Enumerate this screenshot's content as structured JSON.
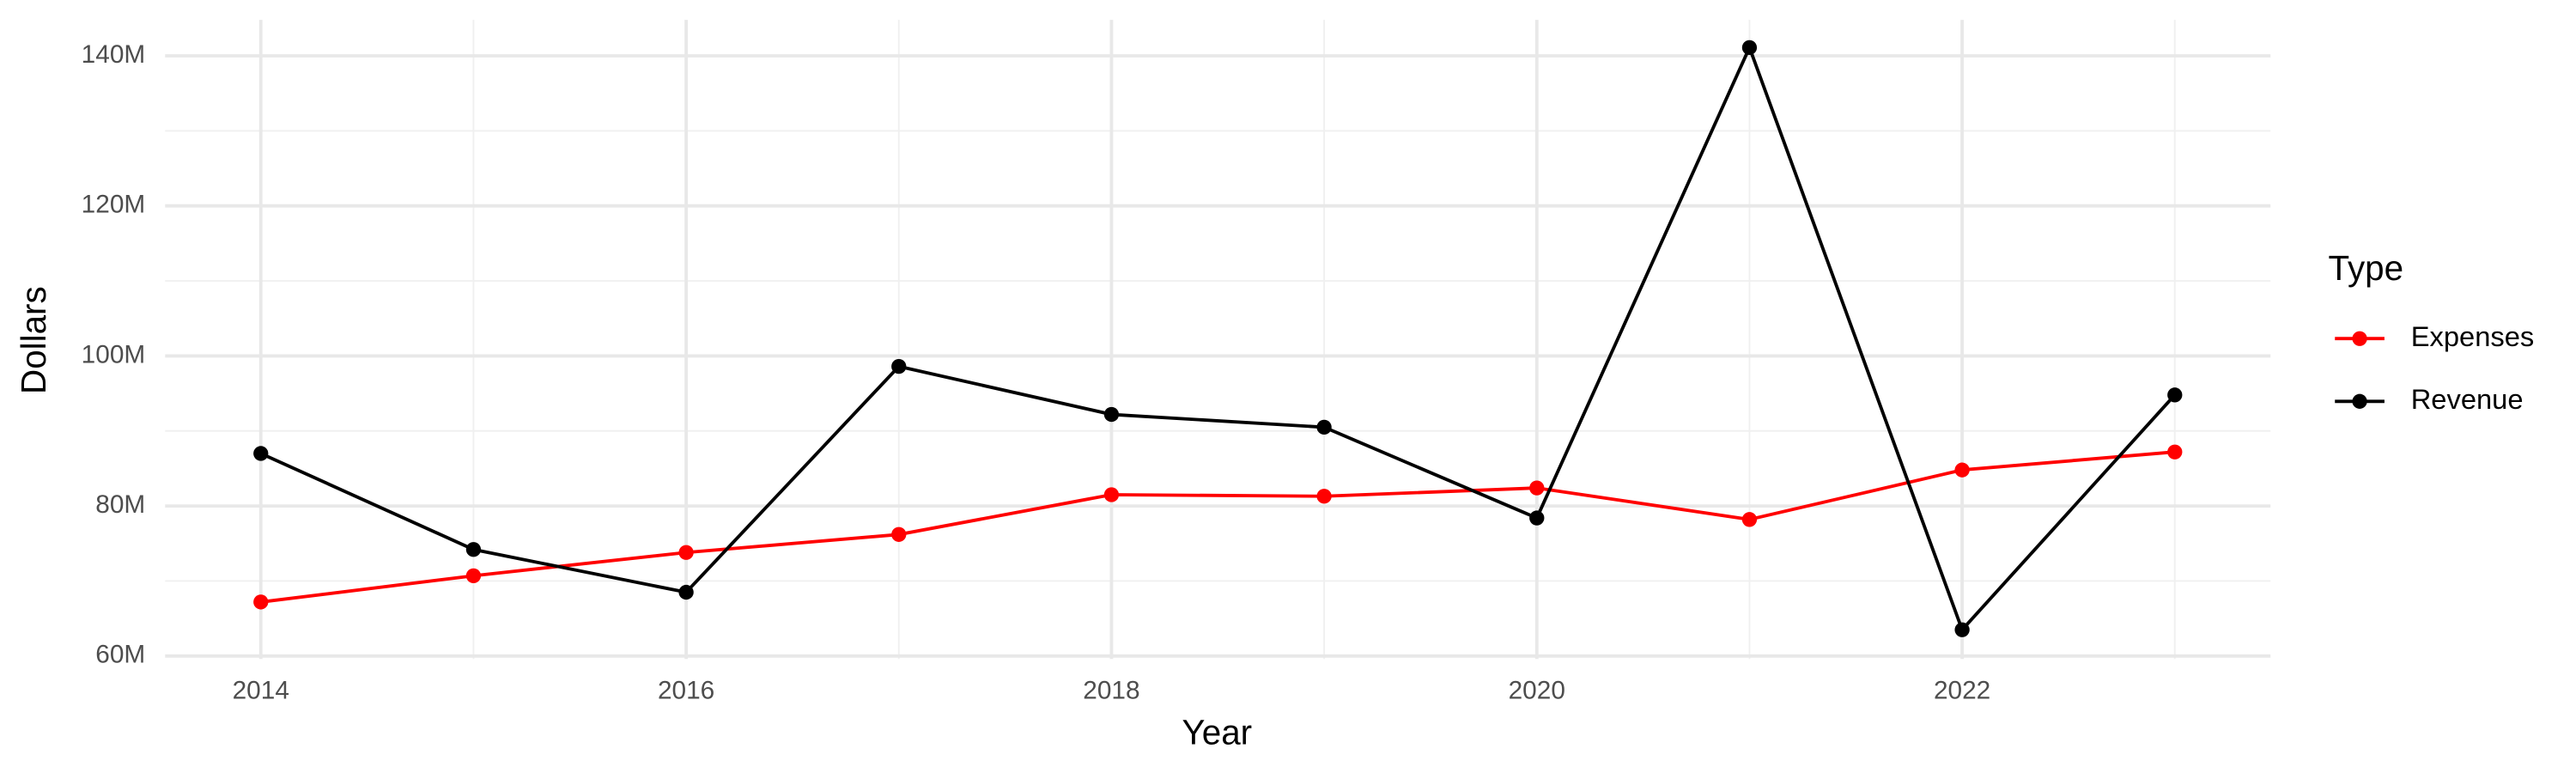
{
  "chart_data": {
    "type": "line",
    "x_label": "Year",
    "y_label": "Dollars",
    "legend_title": "Type",
    "legend_position": "right",
    "x": [
      2014,
      2015,
      2016,
      2017,
      2018,
      2019,
      2020,
      2021,
      2022,
      2023
    ],
    "series": [
      {
        "name": "Expenses",
        "color": "#ff0000",
        "values": [
          67200000,
          70700000,
          73800000,
          76200000,
          81500000,
          81300000,
          82400000,
          78200000,
          84800000,
          87200000
        ]
      },
      {
        "name": "Revenue",
        "color": "#000000",
        "values": [
          87000000,
          74200000,
          68500000,
          98600000,
          92200000,
          90500000,
          78400000,
          141100000,
          63500000,
          94800000
        ]
      }
    ],
    "xlim": [
      2013.55,
      2023.45
    ],
    "xticks": [
      2014,
      2016,
      2018,
      2020,
      2022
    ],
    "x_minor_ticks": [
      2015,
      2017,
      2019,
      2021,
      2023
    ],
    "ylim": [
      59600000,
      144800000
    ],
    "yticks": [
      {
        "value": 60000000,
        "label": "60M"
      },
      {
        "value": 80000000,
        "label": "80M"
      },
      {
        "value": 100000000,
        "label": "100M"
      },
      {
        "value": 120000000,
        "label": "120M"
      },
      {
        "value": 140000000,
        "label": "140M"
      }
    ],
    "y_minor_ticks": [
      70000000,
      90000000,
      110000000,
      130000000
    ],
    "grid": true
  }
}
